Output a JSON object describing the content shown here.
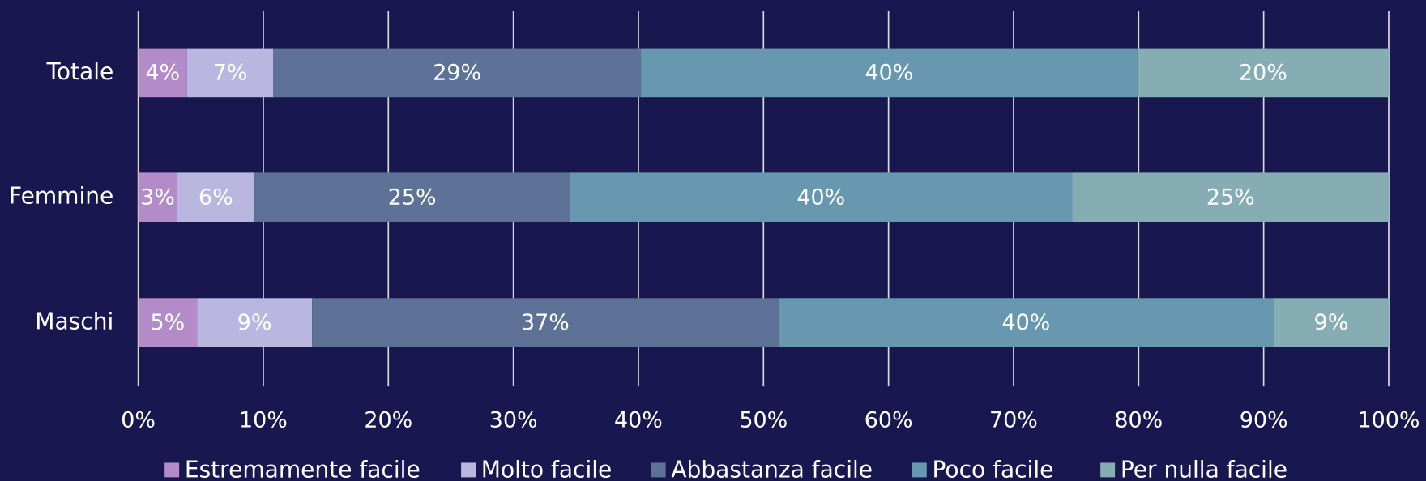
{
  "chart_data": {
    "type": "stacked_barh",
    "categories": [
      "Totale",
      "Femmine",
      "Maschi"
    ],
    "series": [
      {
        "name": "Estremamente facile",
        "color": "#b38bc9",
        "values": [
          3.9,
          3.1,
          4.7
        ],
        "value_labels": [
          "4%",
          "3%",
          "5%"
        ]
      },
      {
        "name": "Molto facile",
        "color": "#b9b6e0",
        "values": [
          6.9,
          6.2,
          9.2
        ],
        "value_labels": [
          "7%",
          "6%",
          "9%"
        ]
      },
      {
        "name": "Abbastanza facile",
        "color": "#5e7297",
        "values": [
          29.4,
          25.2,
          37.3
        ],
        "value_labels": [
          "29%",
          "25%",
          "37%"
        ]
      },
      {
        "name": "Poco facile",
        "color": "#6898b0",
        "values": [
          39.7,
          40.2,
          39.6
        ],
        "value_labels": [
          "40%",
          "40%",
          "40%"
        ]
      },
      {
        "name": "Per nulla facile",
        "color": "#86adb3",
        "values": [
          20.1,
          25.3,
          9.2
        ],
        "value_labels": [
          "20%",
          "25%",
          "9%"
        ]
      }
    ],
    "xlim": [
      0,
      100
    ],
    "xticks": [
      {
        "value": 0,
        "label": "0%"
      },
      {
        "value": 10,
        "label": "10%"
      },
      {
        "value": 20,
        "label": "20%"
      },
      {
        "value": 30,
        "label": "30%"
      },
      {
        "value": 40,
        "label": "40%"
      },
      {
        "value": 50,
        "label": "50%"
      },
      {
        "value": 60,
        "label": "60%"
      },
      {
        "value": 70,
        "label": "70%"
      },
      {
        "value": 80,
        "label": "80%"
      },
      {
        "value": 90,
        "label": "90%"
      },
      {
        "value": 100,
        "label": "100%"
      }
    ],
    "grid": true,
    "legend": "bottom"
  }
}
